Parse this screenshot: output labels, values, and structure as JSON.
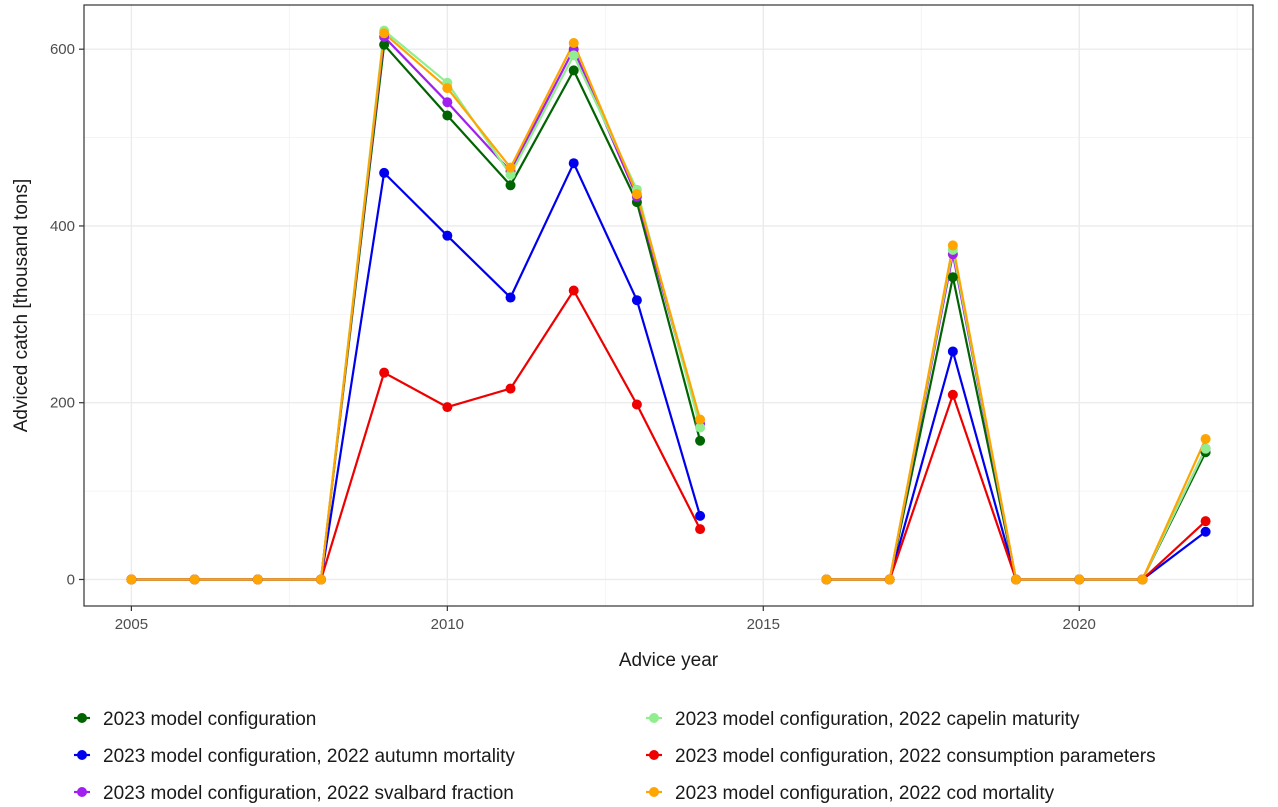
{
  "chart_data": {
    "type": "line",
    "xlabel": "Advice year",
    "ylabel": "Adviced catch [thousand tons]",
    "xlim": [
      2004.25,
      2022.75
    ],
    "ylim": [
      -30,
      650
    ],
    "xticks": [
      2005,
      2010,
      2015,
      2020
    ],
    "yticks": [
      0,
      200,
      400,
      600
    ],
    "grid": true,
    "legend_position": "bottom",
    "x": [
      2005,
      2006,
      2007,
      2008,
      2009,
      2010,
      2011,
      2012,
      2013,
      2014,
      2015,
      2016,
      2017,
      2018,
      2019,
      2020,
      2021,
      2022
    ],
    "series": [
      {
        "name": "2023 model configuration",
        "color": "#006400",
        "values": [
          0,
          0,
          0,
          0,
          605,
          525,
          446,
          576,
          427,
          157,
          null,
          0,
          0,
          342,
          0,
          0,
          0,
          144
        ]
      },
      {
        "name": "2023 model configuration, 2022 autumn mortality",
        "color": "#0000ee",
        "values": [
          0,
          0,
          0,
          0,
          460,
          389,
          319,
          471,
          316,
          72,
          null,
          0,
          0,
          258,
          0,
          0,
          0,
          54
        ]
      },
      {
        "name": "2023 model configuration, 2022 svalbard fraction",
        "color": "#a020f0",
        "values": [
          0,
          0,
          0,
          0,
          614,
          540,
          462,
          600,
          433,
          176,
          null,
          0,
          0,
          368,
          0,
          0,
          0,
          148
        ]
      },
      {
        "name": "2023 model configuration, 2022 capelin maturity",
        "color": "#90ee90",
        "values": [
          0,
          0,
          0,
          0,
          621,
          562,
          458,
          593,
          441,
          172,
          null,
          0,
          0,
          373,
          0,
          0,
          0,
          148
        ]
      },
      {
        "name": "2023 model configuration, 2022 consumption parameters",
        "color": "#ee0000",
        "values": [
          0,
          0,
          0,
          0,
          234,
          195,
          216,
          327,
          198,
          57,
          null,
          0,
          0,
          209,
          0,
          0,
          0,
          66
        ]
      },
      {
        "name": "2023 model configuration, 2022 cod mortality",
        "color": "#ffa500",
        "values": [
          0,
          0,
          0,
          0,
          618,
          556,
          466,
          607,
          436,
          181,
          null,
          0,
          0,
          378,
          0,
          0,
          0,
          159
        ]
      }
    ]
  }
}
